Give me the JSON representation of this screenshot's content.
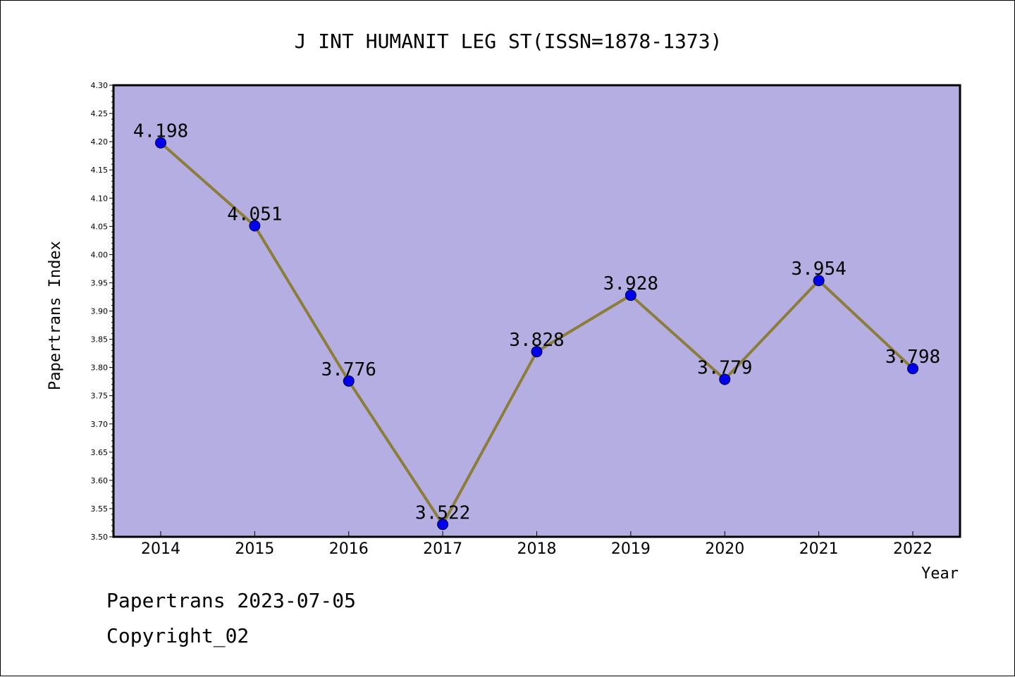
{
  "chart_data": {
    "type": "line",
    "title": "J INT HUMANIT LEG ST(ISSN=1878-1373)",
    "xlabel": "Year",
    "ylabel": "Papertrans Index",
    "categories": [
      "2014",
      "2015",
      "2016",
      "2017",
      "2018",
      "2019",
      "2020",
      "2021",
      "2022"
    ],
    "values": [
      4.198,
      4.051,
      3.776,
      3.522,
      3.828,
      3.928,
      3.779,
      3.954,
      3.798
    ],
    "data_labels": [
      "4.198",
      "4.051",
      "3.776",
      "3.522",
      "3.828",
      "3.928",
      "3.779",
      "3.954",
      "3.798"
    ],
    "ylim": [
      3.5,
      4.3
    ],
    "yticks": [
      "3.50",
      "3.55",
      "3.60",
      "3.65",
      "3.70",
      "3.75",
      "3.80",
      "3.85",
      "3.90",
      "3.95",
      "4.00",
      "4.05",
      "4.10",
      "4.15",
      "4.20",
      "4.25",
      "4.30"
    ],
    "grid": false,
    "legend": "none"
  },
  "colors": {
    "plot_background": "#b5aee2",
    "line": "#8b7d3a",
    "marker": "#0000ee",
    "marker_edge": "#000033"
  },
  "footer": {
    "date_line": "Papertrans 2023-07-05",
    "copyright": "Copyright_02"
  }
}
